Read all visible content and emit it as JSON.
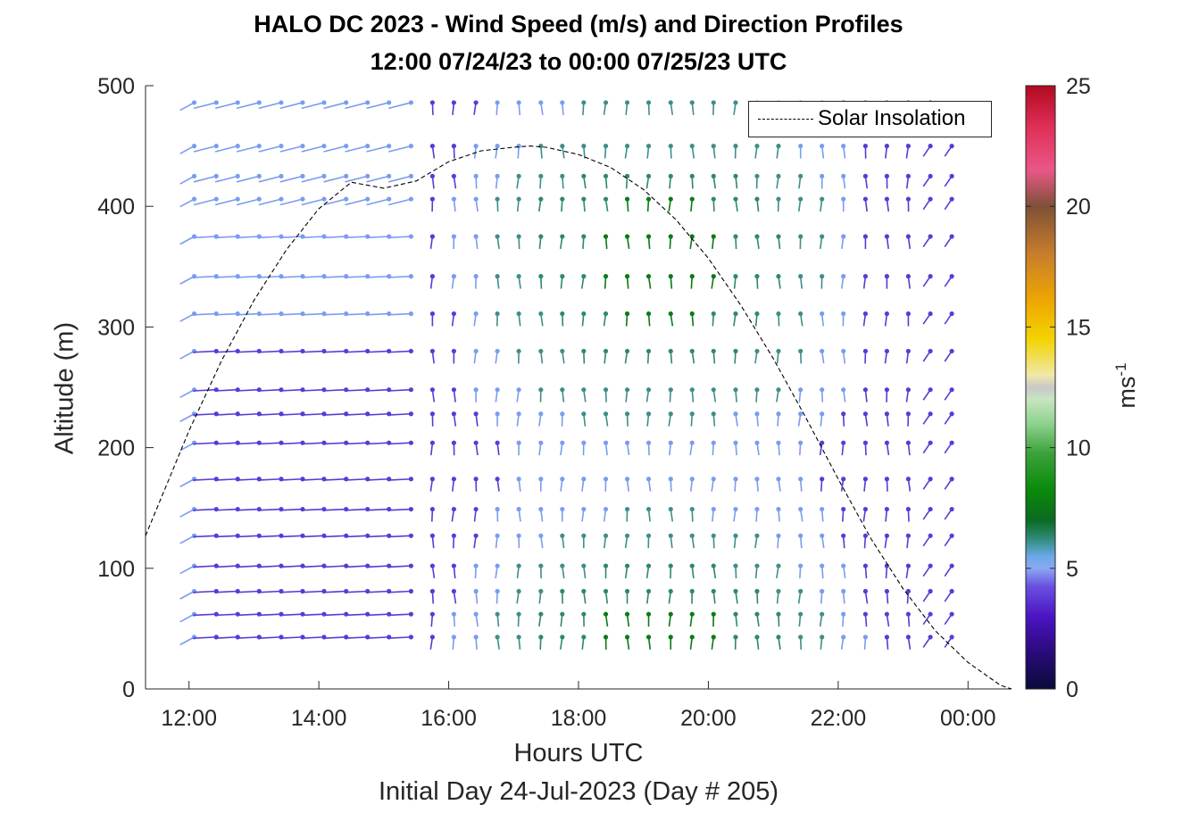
{
  "chart_data": {
    "type": "quiver",
    "title": "HALO DC 2023 - Wind Speed (m/s) and Direction Profiles",
    "subtitle": "12:00 07/24/23 to 00:00 07/25/23  UTC",
    "xlabel": "Hours UTC",
    "ylabel": "Altitude (m)",
    "footer": "Initial Day 24-Jul-2023 (Day # 205)",
    "colorbar_label": "ms",
    "colorbar_label_exp": "-1",
    "x_ticks": [
      "12:00",
      "14:00",
      "16:00",
      "18:00",
      "20:00",
      "22:00",
      "00:00"
    ],
    "x_tick_values": [
      12,
      14,
      16,
      18,
      20,
      22,
      24
    ],
    "xlim": [
      11.33,
      24.67
    ],
    "y_ticks": [
      "0",
      "100",
      "200",
      "300",
      "400",
      "500"
    ],
    "y_tick_values": [
      0,
      100,
      200,
      300,
      400,
      500
    ],
    "ylim": [
      0,
      500
    ],
    "colorbar_ticks": [
      "0",
      "5",
      "10",
      "15",
      "20",
      "25"
    ],
    "colorbar_tick_values": [
      0,
      5,
      10,
      15,
      20,
      25
    ],
    "colorbar_range": [
      0,
      25
    ],
    "legend": {
      "label": "Solar Insolation",
      "location": "top-right"
    },
    "solar_insolation": {
      "style": "dashed",
      "color": "#000000",
      "points": [
        [
          11.33,
          127
        ],
        [
          11.7,
          175
        ],
        [
          12.0,
          214
        ],
        [
          12.5,
          272
        ],
        [
          13.0,
          322
        ],
        [
          13.5,
          364
        ],
        [
          14.0,
          398
        ],
        [
          14.5,
          420
        ],
        [
          15.0,
          415
        ],
        [
          15.5,
          421
        ],
        [
          16.0,
          437
        ],
        [
          16.5,
          446
        ],
        [
          17.0,
          449
        ],
        [
          17.25,
          450
        ],
        [
          17.5,
          449
        ],
        [
          18.0,
          443
        ],
        [
          18.5,
          432
        ],
        [
          19.0,
          414
        ],
        [
          19.5,
          389
        ],
        [
          20.0,
          357
        ],
        [
          20.5,
          318
        ],
        [
          21.0,
          274
        ],
        [
          21.5,
          225
        ],
        [
          22.0,
          174
        ],
        [
          22.5,
          125
        ],
        [
          23.0,
          83
        ],
        [
          23.5,
          48
        ],
        [
          24.0,
          22
        ],
        [
          24.5,
          3
        ],
        [
          24.67,
          0
        ]
      ]
    },
    "wind_grid": {
      "times": [
        12.08,
        12.42,
        12.75,
        13.08,
        13.42,
        13.75,
        14.08,
        14.42,
        14.75,
        15.08,
        15.42,
        15.75,
        16.08,
        16.42,
        16.75,
        17.08,
        17.42,
        17.75,
        18.08,
        18.42,
        18.75,
        19.08,
        19.42,
        19.75,
        20.08,
        20.42,
        20.75,
        21.08,
        21.42,
        21.75,
        22.08,
        22.42,
        22.75,
        23.08,
        23.42,
        23.75
      ],
      "levels": [
        43,
        62,
        81,
        102,
        127,
        149,
        174,
        204,
        228,
        248,
        280,
        311,
        342,
        375,
        406,
        425,
        450,
        486
      ],
      "speed_units": "m/s"
    }
  }
}
